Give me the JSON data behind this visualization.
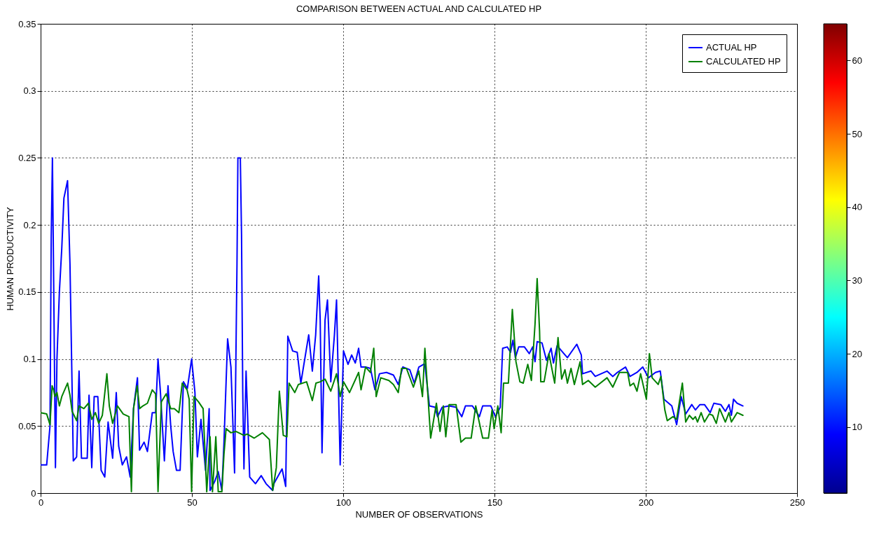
{
  "chart_data": {
    "type": "line",
    "title": "COMPARISON BETWEEN ACTUAL AND CALCULATED HP",
    "xlabel": "NUMBER OF OBSERVATIONS",
    "ylabel": "HUMAN PRODUCTIVITY",
    "xlim": [
      0,
      250
    ],
    "xticks": [
      0,
      50,
      100,
      150,
      200,
      250
    ],
    "ylim": [
      0,
      0.35
    ],
    "yticks": [
      0,
      0.05,
      0.1,
      0.15,
      0.2,
      0.25,
      0.3,
      0.35
    ],
    "grid": true,
    "legend": "top right",
    "clim": [
      1,
      65
    ],
    "cticks": [
      10,
      20,
      30,
      40,
      50,
      60
    ],
    "series": [
      {
        "name": "ACTUAL HP",
        "color": "#0000ff",
        "x": [
          0,
          2,
          3.1,
          3.5,
          3.9,
          4.4,
          4.9,
          5.4,
          6.2,
          7,
          7.7,
          8.9,
          9.7,
          10.4,
          10.8,
          11.9,
          12.7,
          13.5,
          15.4,
          16,
          16.9,
          17.7,
          18.9,
          20,
          21.2,
          22.3,
          23.8,
          25,
          25.8,
          27,
          28.4,
          29.6,
          30.7,
          32,
          32.7,
          34.2,
          35.3,
          36.9,
          38,
          38.8,
          39.6,
          40.9,
          42.1,
          43,
          43.8,
          44.9,
          46.1,
          47.2,
          48.5,
          49.9,
          51,
          51.8,
          53,
          54.5,
          55.7,
          56,
          57.6,
          58.7,
          59.9,
          60.6,
          61.8,
          62.9,
          64.1,
          64.9,
          65.2,
          66,
          66.4,
          66.8,
          67.2,
          67.9,
          68.7,
          69.1,
          71,
          72.9,
          74.5,
          76.7,
          77.1,
          79.8,
          81,
          81.7,
          83.3,
          84.8,
          86,
          88.6,
          89.8,
          90.9,
          91.9,
          92.4,
          93,
          94,
          94.8,
          95.9,
          97.1,
          97.8,
          99,
          100.1,
          101.6,
          102.8,
          104,
          105.1,
          105.9,
          107.4,
          109,
          110.5,
          112,
          114.3,
          116.6,
          118.2,
          119.7,
          122,
          123.5,
          125,
          126.6,
          127,
          128.5,
          130.4,
          131.2,
          132.7,
          135,
          137.3,
          139.2,
          140.4,
          142.7,
          145,
          146.1,
          148.8,
          150.3,
          151.9,
          152.7,
          154.2,
          155.3,
          156.1,
          156.9,
          158,
          159.9,
          161.5,
          162.6,
          163.4,
          164.1,
          165.7,
          167.2,
          168.7,
          169.5,
          170.7,
          172.2,
          174.1,
          177.2,
          178.7,
          179.1,
          181.9,
          183.3,
          187.2,
          189.1,
          190.6,
          193.3,
          194.8,
          197.1,
          199,
          200.9,
          203.2,
          204.8,
          206,
          208.6,
          210.2,
          211.7,
          213.2,
          215.2,
          216.4,
          217.9,
          219.4,
          221.3,
          222.5,
          224.8,
          226.3,
          227.5,
          228.3,
          229,
          230.2,
          232.1
        ],
        "values": [
          0.021,
          0.021,
          0.05,
          0.19,
          0.25,
          0.137,
          0.019,
          0.1,
          0.15,
          0.183,
          0.22,
          0.233,
          0.171,
          0.079,
          0.024,
          0.027,
          0.091,
          0.026,
          0.026,
          0.073,
          0.019,
          0.072,
          0.072,
          0.017,
          0.012,
          0.053,
          0.026,
          0.075,
          0.035,
          0.021,
          0.027,
          0.012,
          0.063,
          0.086,
          0.032,
          0.038,
          0.031,
          0.06,
          0.06,
          0.1,
          0.075,
          0.024,
          0.08,
          0.05,
          0.031,
          0.017,
          0.017,
          0.083,
          0.078,
          0.1,
          0.075,
          0.027,
          0.055,
          0.017,
          0.063,
          0.002,
          0.009,
          0.016,
          0.002,
          0.038,
          0.115,
          0.094,
          0.015,
          0.171,
          0.25,
          0.25,
          0.193,
          0.076,
          0.018,
          0.091,
          0.038,
          0.012,
          0.007,
          0.013,
          0.007,
          0.002,
          0.007,
          0.018,
          0.005,
          0.117,
          0.106,
          0.105,
          0.082,
          0.118,
          0.091,
          0.118,
          0.162,
          0.129,
          0.03,
          0.129,
          0.144,
          0.083,
          0.118,
          0.144,
          0.021,
          0.106,
          0.096,
          0.103,
          0.097,
          0.108,
          0.094,
          0.094,
          0.093,
          0.077,
          0.089,
          0.09,
          0.088,
          0.081,
          0.094,
          0.092,
          0.082,
          0.094,
          0.096,
          0.096,
          0.065,
          0.064,
          0.057,
          0.064,
          0.065,
          0.064,
          0.057,
          0.065,
          0.065,
          0.057,
          0.065,
          0.065,
          0.057,
          0.064,
          0.108,
          0.109,
          0.105,
          0.114,
          0.101,
          0.109,
          0.109,
          0.104,
          0.109,
          0.098,
          0.113,
          0.112,
          0.099,
          0.108,
          0.097,
          0.11,
          0.106,
          0.101,
          0.111,
          0.103,
          0.089,
          0.091,
          0.087,
          0.091,
          0.087,
          0.09,
          0.094,
          0.087,
          0.09,
          0.094,
          0.086,
          0.09,
          0.091,
          0.07,
          0.065,
          0.051,
          0.072,
          0.059,
          0.066,
          0.062,
          0.066,
          0.066,
          0.06,
          0.067,
          0.066,
          0.061,
          0.066,
          0.058,
          0.07,
          0.067,
          0.065
        ]
      },
      {
        "name": "CALCULATED HP",
        "color": "#008000",
        "x": [
          0,
          2,
          3.1,
          3.8,
          4.3,
          4.7,
          5.4,
          6.2,
          7,
          8.9,
          9.7,
          10.4,
          11.9,
          12.7,
          14.3,
          15.8,
          16.9,
          18.1,
          19.2,
          20.4,
          21.9,
          22.7,
          23.8,
          25.4,
          27.3,
          29.2,
          30,
          30.7,
          31.9,
          32.7,
          33.8,
          35.3,
          36.9,
          38,
          38.8,
          39.9,
          41.5,
          43,
          44.2,
          45.7,
          46.8,
          48.4,
          49.1,
          49.9,
          50.7,
          52.2,
          53.7,
          54.9,
          56,
          56.8,
          57.9,
          58.7,
          59.9,
          60.6,
          61.3,
          62.9,
          64.5,
          67.2,
          68.3,
          70.6,
          73.3,
          75.6,
          76.7,
          77.9,
          78.9,
          80.2,
          81.4,
          82.1,
          84,
          85.2,
          87.9,
          89.8,
          91,
          92.4,
          94,
          95.9,
          97.8,
          99,
          100.1,
          102.1,
          105.1,
          105.9,
          107.4,
          109,
          110.1,
          110.9,
          112.4,
          115.1,
          116.6,
          118.2,
          119.3,
          120.9,
          123.2,
          125,
          126.2,
          127,
          128.9,
          130.8,
          132,
          133.1,
          133.9,
          135,
          137.3,
          138.9,
          140.4,
          142.3,
          143.8,
          146.1,
          148,
          149.2,
          149.9,
          151.1,
          152.2,
          153,
          154.6,
          155.9,
          157.1,
          158.4,
          159.5,
          161,
          162.2,
          163.4,
          164.1,
          164.9,
          165.3,
          166.4,
          168,
          169.9,
          171,
          172.2,
          173.3,
          174.1,
          175.3,
          176.4,
          178.3,
          179.1,
          181,
          183.3,
          187.2,
          189.1,
          191.3,
          194,
          194.8,
          196,
          197.1,
          198.3,
          200.2,
          201.2,
          202.1,
          204.1,
          205,
          206.3,
          207.1,
          209,
          210.2,
          212.1,
          213.2,
          214.4,
          215.6,
          216.4,
          217.1,
          218.3,
          219.4,
          221,
          222.1,
          223.3,
          224.4,
          226.3,
          227.5,
          228.3,
          230.2,
          232.1
        ],
        "values": [
          0.06,
          0.059,
          0.051,
          0.08,
          0.077,
          0.072,
          0.075,
          0.065,
          0.072,
          0.082,
          0.073,
          0.061,
          0.054,
          0.065,
          0.063,
          0.067,
          0.055,
          0.06,
          0.052,
          0.058,
          0.089,
          0.065,
          0.052,
          0.065,
          0.059,
          0.057,
          0.001,
          0.063,
          0.08,
          0.063,
          0.065,
          0.067,
          0.077,
          0.074,
          0.001,
          0.068,
          0.074,
          0.063,
          0.063,
          0.06,
          0.082,
          0.077,
          0.07,
          0.001,
          0.072,
          0.068,
          0.063,
          0.001,
          0.042,
          0.001,
          0.042,
          0.001,
          0.001,
          0.029,
          0.048,
          0.045,
          0.046,
          0.043,
          0.044,
          0.041,
          0.045,
          0.04,
          0.002,
          0.019,
          0.076,
          0.043,
          0.042,
          0.082,
          0.075,
          0.081,
          0.083,
          0.069,
          0.082,
          0.083,
          0.085,
          0.076,
          0.089,
          0.072,
          0.083,
          0.075,
          0.09,
          0.077,
          0.094,
          0.09,
          0.108,
          0.072,
          0.086,
          0.084,
          0.081,
          0.075,
          0.093,
          0.093,
          0.079,
          0.091,
          0.072,
          0.108,
          0.041,
          0.067,
          0.046,
          0.065,
          0.042,
          0.066,
          0.066,
          0.038,
          0.041,
          0.041,
          0.065,
          0.041,
          0.041,
          0.062,
          0.048,
          0.065,
          0.045,
          0.082,
          0.082,
          0.137,
          0.098,
          0.083,
          0.082,
          0.096,
          0.084,
          0.126,
          0.16,
          0.121,
          0.083,
          0.083,
          0.104,
          0.082,
          0.116,
          0.085,
          0.092,
          0.082,
          0.093,
          0.081,
          0.098,
          0.081,
          0.084,
          0.079,
          0.086,
          0.079,
          0.09,
          0.09,
          0.08,
          0.082,
          0.076,
          0.089,
          0.07,
          0.104,
          0.086,
          0.081,
          0.087,
          0.062,
          0.054,
          0.057,
          0.055,
          0.082,
          0.053,
          0.058,
          0.055,
          0.057,
          0.053,
          0.06,
          0.053,
          0.059,
          0.058,
          0.052,
          0.063,
          0.053,
          0.06,
          0.053,
          0.06,
          0.058
        ]
      }
    ]
  }
}
